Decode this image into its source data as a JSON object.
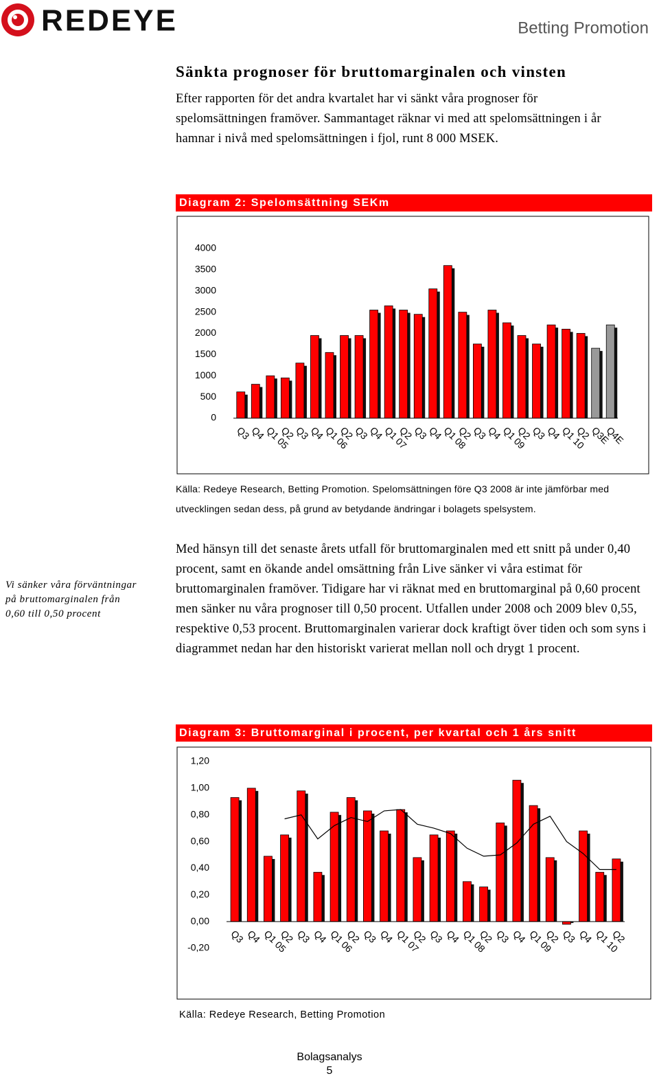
{
  "header": {
    "logo": "REDEYE",
    "title": "Betting Promotion"
  },
  "section": {
    "heading": "Sänkta prognoser för bruttomarginalen och vinsten",
    "paragraph": "Efter rapporten för det andra kvartalet har vi sänkt våra prognoser för spelomsättningen framöver. Sammantaget räknar vi med att spelomsättningen i år hamnar i nivå med spelomsättningen i fjol, runt 8 000 MSEK."
  },
  "sidebar": "Vi sänker våra förväntningar på bruttomarginalen från 0,60 till 0,50 procent",
  "paragraph_2": "Med hänsyn till det senaste årets utfall för bruttomarginalen med ett snitt på under 0,40 procent, samt en ökande andel omsättning från Live sänker vi våra estimat för bruttomarginalen framöver. Tidigare har vi räknat med en bruttomarginal på 0,60 procent men sänker nu våra prognoser till 0,50 procent. Utfallen under 2008 och 2009 blev 0,55, respektive 0,53 procent. Bruttomarginalen varierar dock kraftigt över tiden och som syns i diagrammet nedan har den historiskt varierat mellan noll och drygt 1 procent.",
  "chart_data": [
    {
      "type": "bar",
      "title": "Diagram 2: Spelomsättning SEKm",
      "source": "Källa: Redeye Research, Betting Promotion. Spelomsättningen före Q3 2008 är inte jämförbar med utvecklingen sedan dess, på grund av betydande ändringar i bolagets spelsystem.",
      "categories": [
        "Q3",
        "Q4",
        "Q1 05",
        "Q2",
        "Q3",
        "Q4",
        "Q1 06",
        "Q2",
        "Q3",
        "Q4",
        "Q1 07",
        "Q2",
        "Q3",
        "Q4",
        "Q1 08",
        "Q2",
        "Q3",
        "Q4",
        "Q1 09",
        "Q2",
        "Q3",
        "Q4",
        "Q1 10",
        "Q2",
        "Q3E",
        "Q4E"
      ],
      "series": [
        {
          "values": [
            620,
            800,
            1000,
            950,
            1300,
            1950,
            1550,
            1950,
            1950,
            2550,
            2650,
            2550,
            2450,
            3050,
            3600,
            2500,
            1750,
            2550,
            2250,
            1950,
            1750,
            2200,
            2100,
            2000,
            1650,
            2200
          ],
          "colors": [
            "#ff0000",
            "#ff0000",
            "#ff0000",
            "#ff0000",
            "#ff0000",
            "#ff0000",
            "#ff0000",
            "#ff0000",
            "#ff0000",
            "#ff0000",
            "#ff0000",
            "#ff0000",
            "#ff0000",
            "#ff0000",
            "#ff0000",
            "#ff0000",
            "#ff0000",
            "#ff0000",
            "#ff0000",
            "#ff0000",
            "#ff0000",
            "#ff0000",
            "#ff0000",
            "#ff0000",
            "#999999",
            "#999999"
          ]
        }
      ],
      "ylim": [
        0,
        4000
      ],
      "yticks": [
        0,
        500,
        1000,
        1500,
        2000,
        2500,
        3000,
        3500,
        4000
      ]
    },
    {
      "type": "bar",
      "title": "Diagram 3: Bruttomarginal i procent, per kvartal och 1 års snitt",
      "source": "Källa: Redeye Research, Betting Promotion",
      "categories": [
        "Q3",
        "Q4",
        "Q1 05",
        "Q2",
        "Q3",
        "Q4",
        "Q1 06",
        "Q2",
        "Q3",
        "Q4",
        "Q1 07",
        "Q2",
        "Q3",
        "Q4",
        "Q1 08",
        "Q2",
        "Q3",
        "Q4",
        "Q1 09",
        "Q2",
        "Q3",
        "Q4",
        "Q1 10",
        "Q2"
      ],
      "series": [
        {
          "color": "#ff0000",
          "values": [
            0.93,
            1.0,
            0.49,
            0.65,
            0.98,
            0.37,
            0.82,
            0.93,
            0.83,
            0.68,
            0.84,
            0.48,
            0.65,
            0.68,
            0.3,
            0.26,
            0.74,
            1.06,
            0.87,
            0.48,
            -0.02,
            0.68,
            0.37,
            0.47
          ]
        },
        {
          "type": "line",
          "color": "#000000",
          "values": [
            null,
            null,
            null,
            0.77,
            0.8,
            0.62,
            0.72,
            0.78,
            0.75,
            0.83,
            0.84,
            0.73,
            0.7,
            0.66,
            0.55,
            0.49,
            0.5,
            0.59,
            0.73,
            0.79,
            0.6,
            0.51,
            0.39,
            0.39
          ]
        }
      ],
      "ylim": [
        -0.2,
        1.2
      ],
      "yticks": [
        {
          "value": -0.2,
          "label": "-0,20"
        },
        {
          "value": 0,
          "label": "0,00"
        },
        {
          "value": 0.2,
          "label": "0,20"
        },
        {
          "value": 0.4,
          "label": "0,40"
        },
        {
          "value": 0.6,
          "label": "0,60"
        },
        {
          "value": 0.8,
          "label": "0,80"
        },
        {
          "value": 1.0,
          "label": "1,00"
        },
        {
          "value": 1.2,
          "label": "1,20"
        }
      ]
    }
  ],
  "footer": {
    "label": "Bolagsanalys",
    "page": 5
  }
}
